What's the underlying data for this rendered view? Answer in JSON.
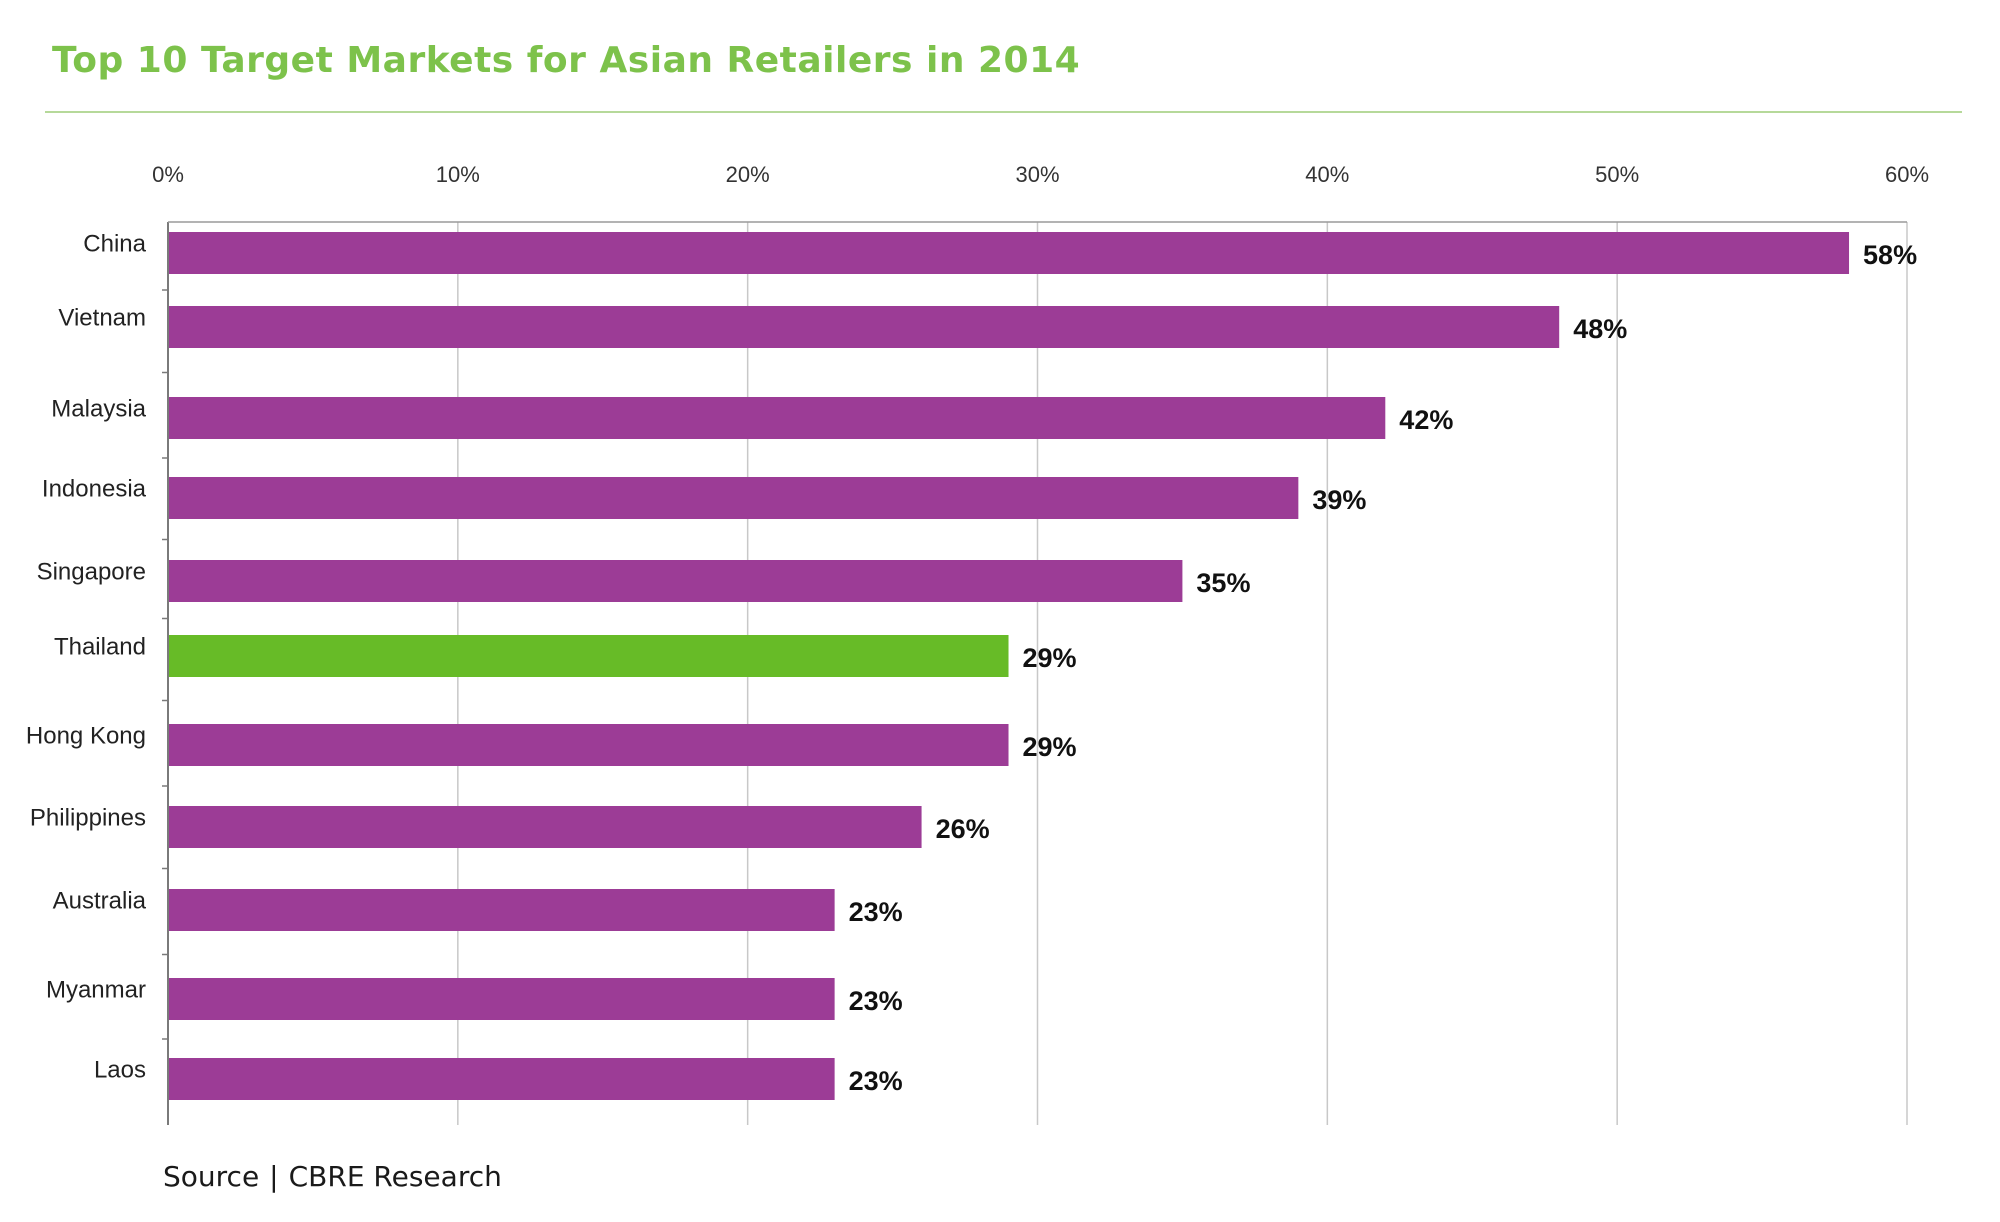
{
  "title": "Top 10 Target Markets for Asian Retailers in 2014",
  "source": {
    "label": "Source",
    "text": "CBRE Research"
  },
  "colors": {
    "title": "#7dc24b",
    "bar": "#9c3c96",
    "highlight_bar": "#67bb27",
    "highlight_label": "#2e7f78",
    "grid": "#c8c8c8",
    "rule": "#b6d99a"
  },
  "chart_data": {
    "type": "bar",
    "orientation": "horizontal",
    "categories": [
      "China",
      "Vietnam",
      "Malaysia",
      "Indonesia",
      "Singapore",
      "Thailand",
      "Hong Kong",
      "Philippines",
      "Australia",
      "Myanmar",
      "Laos"
    ],
    "values": [
      58,
      48,
      42,
      39,
      35,
      29,
      29,
      26,
      23,
      23,
      23
    ],
    "value_labels": [
      "58%",
      "48%",
      "42%",
      "39%",
      "35%",
      "29%",
      "29%",
      "26%",
      "23%",
      "23%",
      "23%"
    ],
    "highlight": "Thailand",
    "xlim": [
      0,
      60
    ],
    "xticks": [
      0,
      10,
      20,
      30,
      40,
      50,
      60
    ],
    "xtick_labels": [
      "0%",
      "10%",
      "20%",
      "30%",
      "40%",
      "50%",
      "60%"
    ],
    "axis_position": "top",
    "grid": true,
    "legend": false
  }
}
